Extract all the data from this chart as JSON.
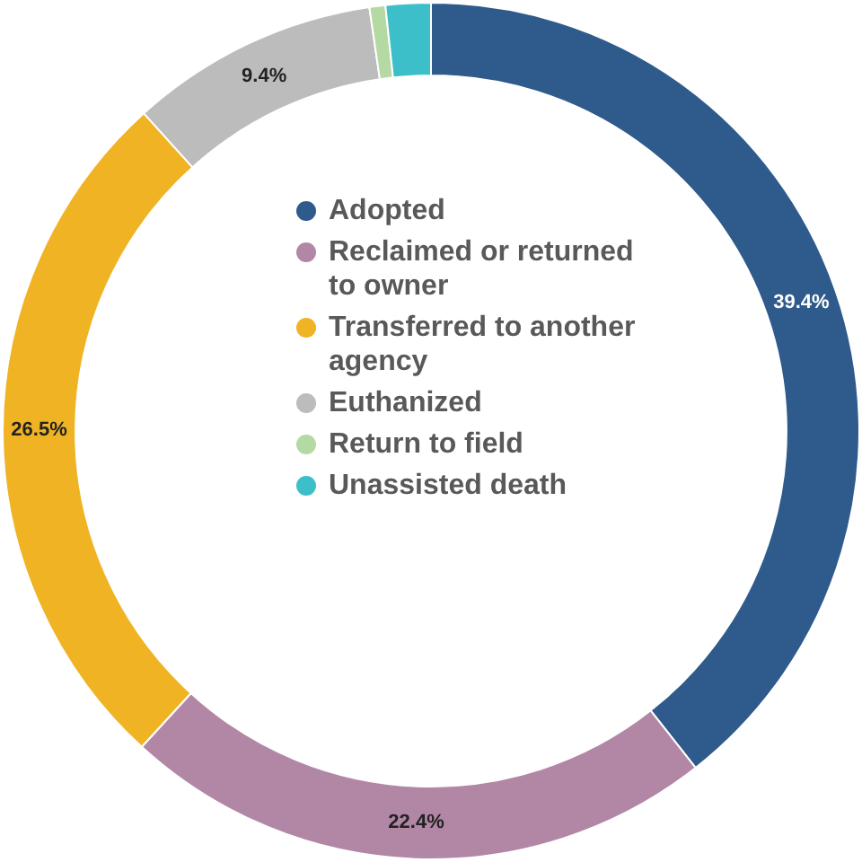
{
  "chart_data": {
    "type": "donut",
    "categories": [
      "Adopted",
      "Reclaimed or returned to owner",
      "Transferred to another agency",
      "Euthanized",
      "Return to field",
      "Unassisted death"
    ],
    "values": [
      39.4,
      22.4,
      26.5,
      9.4,
      0.6,
      1.7
    ],
    "colors": [
      "#2e5a8c",
      "#b287a6",
      "#f0b323",
      "#bcbcbc",
      "#b5d9a3",
      "#3dbfc9"
    ],
    "value_labels": [
      "39.4%",
      "22.4%",
      "26.5%",
      "9.4%",
      null,
      null
    ],
    "legend": "center"
  }
}
